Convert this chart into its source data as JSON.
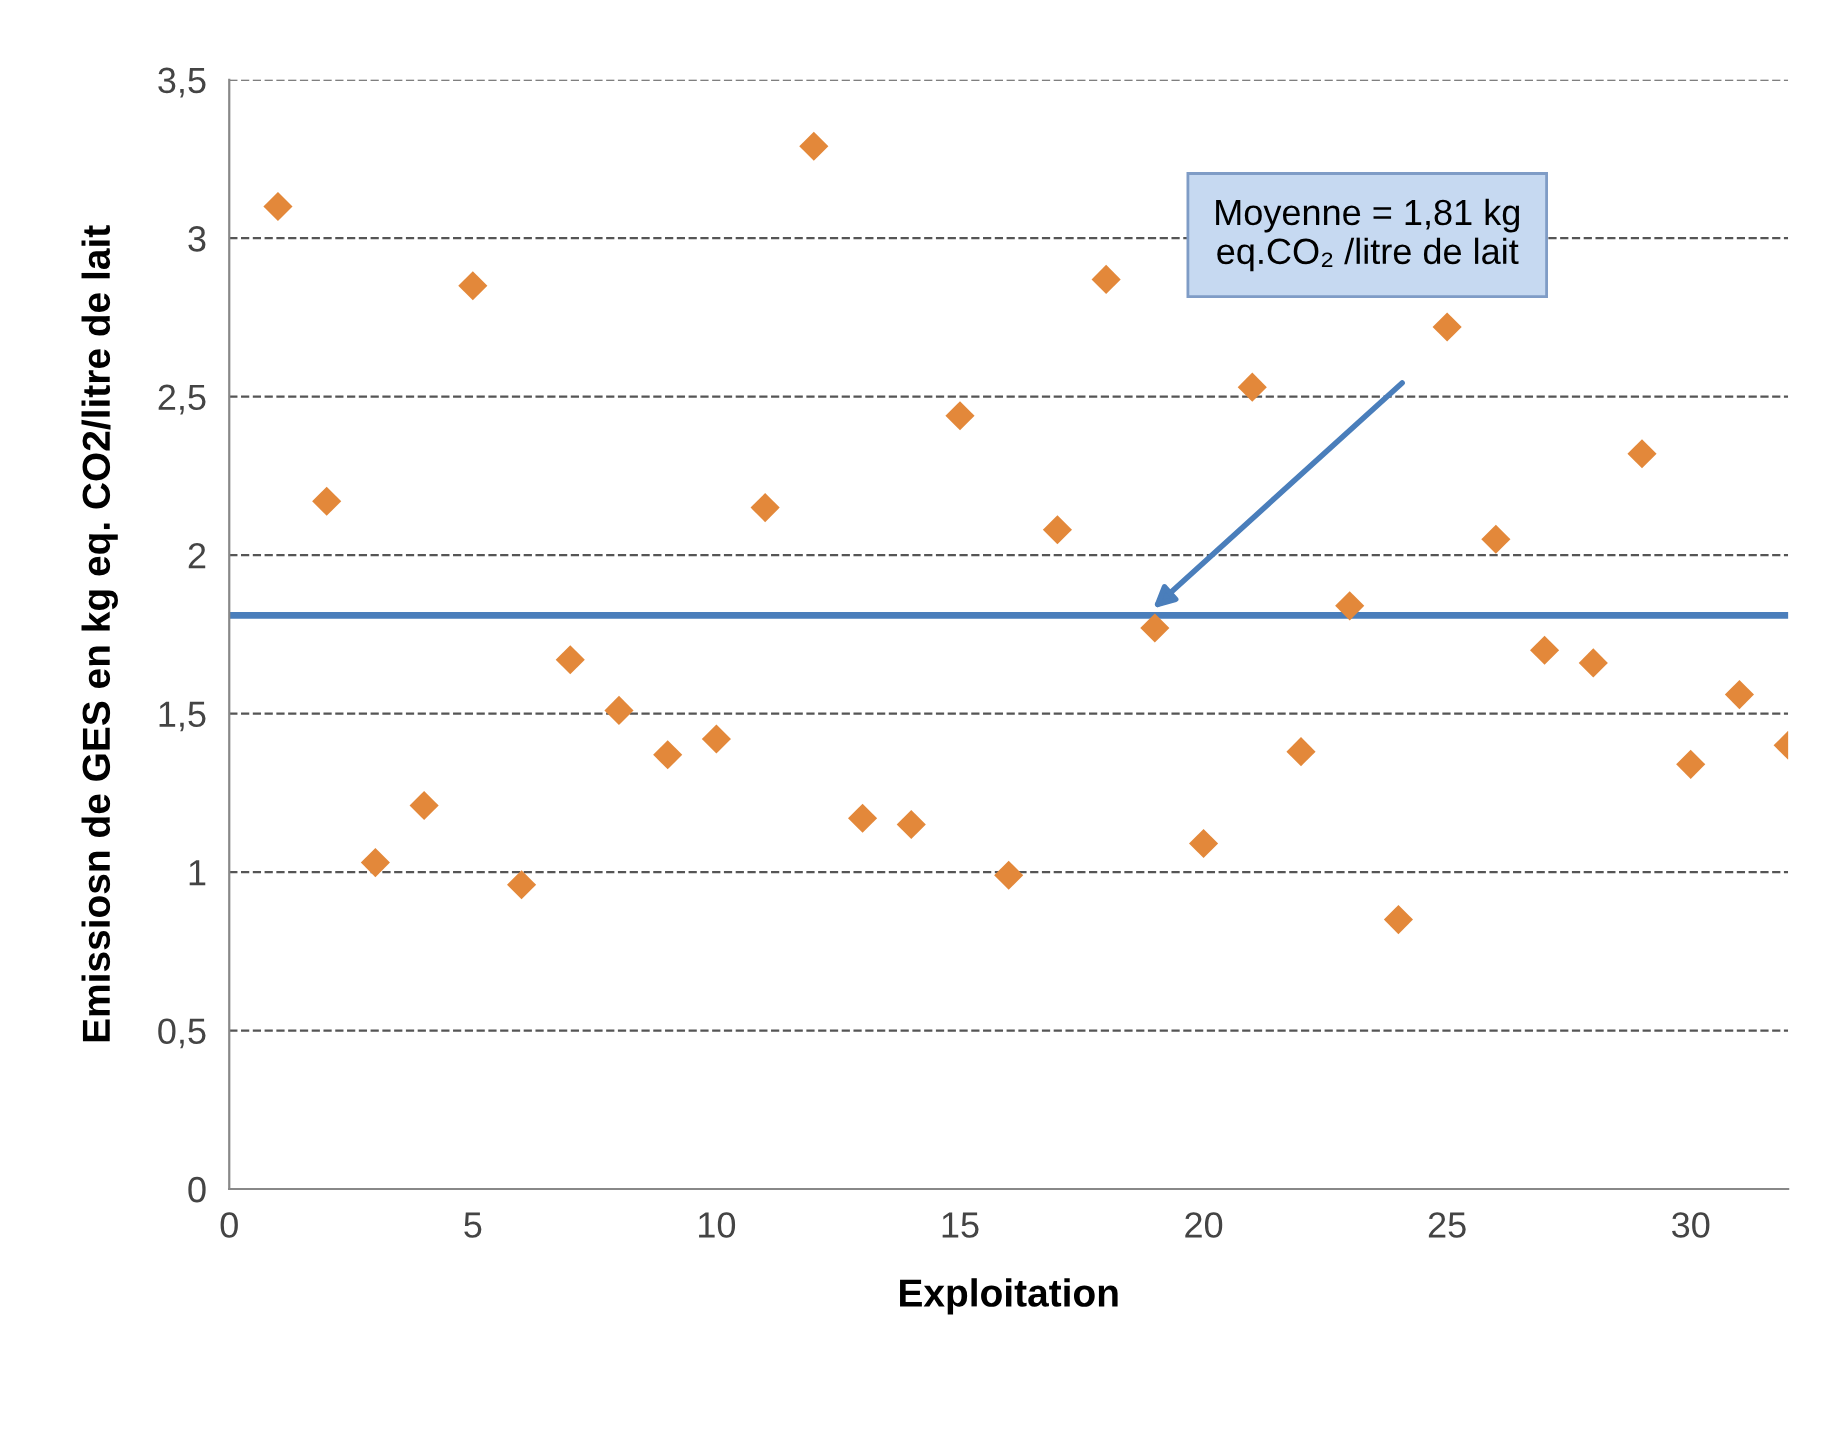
{
  "chart_data": {
    "type": "scatter",
    "xlabel": "Exploitation",
    "ylabel": "Emissiosn de GES en kg eq. CO2/litre de lait",
    "x": [
      1,
      2,
      3,
      4,
      5,
      6,
      7,
      8,
      9,
      10,
      11,
      12,
      13,
      14,
      15,
      16,
      17,
      18,
      19,
      20,
      21,
      22,
      23,
      24,
      25,
      26,
      27,
      28,
      29,
      30,
      31,
      32
    ],
    "series": [
      {
        "color": "#e3883a",
        "values": [
          3.1,
          2.17,
          1.03,
          1.21,
          2.85,
          0.96,
          1.67,
          1.51,
          1.37,
          1.42,
          2.15,
          3.29,
          1.17,
          1.15,
          2.44,
          0.99,
          2.08,
          2.87,
          1.77,
          1.09,
          2.53,
          1.38,
          1.84,
          0.85,
          2.72,
          2.05,
          1.7,
          1.66,
          2.32,
          1.34,
          1.56,
          1.4
        ]
      }
    ],
    "marker": "diamond",
    "xlim": [
      0,
      32
    ],
    "xticks": [
      0,
      5,
      10,
      15,
      20,
      25,
      30
    ],
    "ylim": [
      0,
      3.5
    ],
    "yticks": [
      0,
      {
        "value": 0.5,
        "label": "0,5"
      },
      1,
      {
        "value": 1.5,
        "label": "1,5"
      },
      2,
      {
        "value": 2.5,
        "label": "2,5"
      },
      3,
      {
        "value": 3.5,
        "label": "3,5"
      }
    ],
    "grid": "y",
    "ref_lines": [
      {
        "axis": "y",
        "value": 1.81,
        "color": "#4a7ebb",
        "line_style": "solid"
      }
    ],
    "annotations": [
      "Moyenne = 1,81 kg\neq.CO₂ /litre de lait"
    ]
  }
}
